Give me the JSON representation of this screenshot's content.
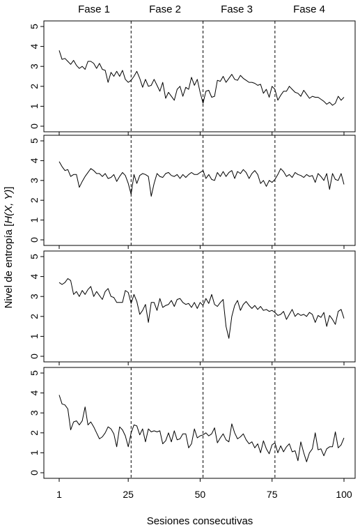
{
  "chart_data": {
    "type": "line",
    "layout": "four vertically stacked panels sharing the x axis",
    "xlabel": "Sesiones consecutivas",
    "ylabel": "Nivel de entropía [H(X, Y)]",
    "ylabel_parts": {
      "before": "Nivel de entropía [",
      "italic": "H(X, Y)",
      "after": "]"
    },
    "phases": [
      "Fase 1",
      "Fase 2",
      "Fase 3",
      "Fase 4"
    ],
    "phase_boundaries": [
      26,
      51,
      76
    ],
    "xlim": [
      1,
      100
    ],
    "ylim": [
      0,
      5
    ],
    "x_ticks": [
      1,
      25,
      50,
      75,
      100
    ],
    "y_ticks": [
      0,
      1,
      2,
      3,
      4,
      5
    ],
    "grid": false,
    "legend": "none",
    "x": [
      1,
      2,
      3,
      4,
      5,
      6,
      7,
      8,
      9,
      10,
      11,
      12,
      13,
      14,
      15,
      16,
      17,
      18,
      19,
      20,
      21,
      22,
      23,
      24,
      25,
      26,
      27,
      28,
      29,
      30,
      31,
      32,
      33,
      34,
      35,
      36,
      37,
      38,
      39,
      40,
      41,
      42,
      43,
      44,
      45,
      46,
      47,
      48,
      49,
      50,
      51,
      52,
      53,
      54,
      55,
      56,
      57,
      58,
      59,
      60,
      61,
      62,
      63,
      64,
      65,
      66,
      67,
      68,
      69,
      70,
      71,
      72,
      73,
      74,
      75,
      76,
      77,
      78,
      79,
      80,
      81,
      82,
      83,
      84,
      85,
      86,
      87,
      88,
      89,
      90,
      91,
      92,
      93,
      94,
      95,
      96,
      97,
      98,
      99,
      100
    ],
    "panels": [
      {
        "values": [
          3.8,
          3.35,
          3.4,
          3.25,
          3.1,
          3.3,
          3.05,
          2.9,
          3.0,
          2.85,
          3.25,
          3.25,
          3.15,
          2.9,
          3.15,
          2.85,
          2.8,
          2.2,
          2.7,
          2.5,
          2.75,
          2.5,
          2.8,
          2.35,
          2.2,
          2.3,
          2.5,
          2.75,
          2.4,
          1.95,
          2.35,
          2.0,
          2.05,
          2.35,
          2.05,
          1.75,
          2.2,
          1.4,
          1.7,
          1.5,
          1.3,
          1.85,
          2.0,
          1.5,
          1.95,
          1.85,
          2.45,
          2.05,
          2.35,
          1.7,
          1.15,
          1.75,
          1.8,
          1.45,
          1.5,
          2.3,
          2.25,
          2.5,
          2.2,
          2.4,
          2.6,
          2.35,
          2.3,
          2.55,
          2.4,
          2.3,
          2.2,
          2.2,
          2.15,
          2.05,
          2.1,
          1.65,
          1.85,
          1.45,
          2.0,
          1.85,
          1.3,
          1.55,
          1.75,
          1.75,
          2.0,
          1.85,
          1.7,
          1.65,
          1.5,
          1.8,
          1.6,
          1.4,
          1.5,
          1.45,
          1.45,
          1.35,
          1.25,
          1.1,
          1.2,
          1.05,
          1.15,
          1.5,
          1.3,
          1.45
        ]
      },
      {
        "values": [
          3.95,
          3.7,
          3.5,
          3.55,
          3.2,
          3.3,
          3.3,
          2.65,
          2.95,
          3.2,
          3.4,
          3.6,
          3.5,
          3.35,
          3.35,
          3.2,
          3.35,
          3.1,
          3.15,
          3.3,
          2.95,
          3.2,
          3.4,
          3.25,
          2.85,
          2.3,
          3.3,
          2.85,
          3.25,
          3.35,
          3.3,
          3.2,
          2.2,
          2.85,
          3.35,
          3.2,
          3.15,
          3.35,
          3.4,
          3.25,
          3.2,
          3.3,
          3.1,
          3.3,
          3.15,
          3.3,
          3.4,
          3.3,
          3.3,
          3.4,
          3.5,
          3.1,
          3.3,
          3.05,
          3.0,
          3.4,
          3.2,
          3.45,
          3.2,
          3.4,
          3.5,
          3.1,
          3.45,
          3.35,
          3.55,
          3.4,
          3.1,
          3.35,
          3.5,
          3.3,
          2.85,
          3.0,
          2.7,
          3.0,
          2.9,
          3.05,
          3.3,
          3.6,
          3.45,
          3.2,
          3.3,
          3.15,
          3.4,
          3.3,
          3.25,
          3.15,
          3.3,
          3.2,
          3.25,
          2.9,
          3.35,
          3.2,
          3.0,
          3.35,
          2.55,
          3.35,
          3.05,
          3.0,
          3.35,
          2.8
        ]
      },
      {
        "values": [
          3.7,
          3.6,
          3.7,
          3.9,
          3.8,
          3.1,
          3.25,
          3.0,
          3.3,
          3.1,
          3.35,
          3.5,
          3.0,
          3.25,
          3.05,
          2.85,
          3.25,
          3.4,
          3.0,
          2.95,
          2.7,
          2.7,
          2.7,
          3.3,
          3.2,
          2.65,
          3.1,
          2.75,
          2.1,
          2.3,
          2.6,
          1.7,
          2.7,
          2.7,
          2.3,
          2.9,
          2.45,
          2.55,
          2.6,
          2.8,
          2.5,
          2.85,
          2.9,
          2.7,
          2.6,
          2.65,
          2.45,
          2.7,
          2.4,
          2.7,
          2.55,
          2.9,
          2.65,
          3.1,
          2.6,
          2.5,
          2.7,
          2.85,
          1.5,
          0.9,
          2.0,
          2.55,
          2.8,
          2.3,
          2.6,
          2.75,
          2.55,
          2.4,
          2.55,
          2.35,
          2.5,
          2.3,
          2.35,
          2.25,
          2.3,
          2.2,
          2.05,
          2.1,
          2.25,
          1.85,
          2.1,
          2.35,
          2.0,
          2.15,
          2.05,
          2.1,
          2.0,
          2.2,
          2.1,
          1.7,
          2.05,
          1.95,
          2.2,
          1.5,
          2.05,
          1.85,
          1.6,
          2.25,
          2.35,
          1.9
        ]
      },
      {
        "values": [
          3.9,
          3.45,
          3.4,
          3.2,
          2.15,
          2.55,
          2.6,
          2.4,
          2.6,
          3.3,
          2.4,
          2.55,
          2.3,
          2.0,
          1.7,
          1.8,
          2.0,
          2.3,
          2.2,
          1.95,
          1.3,
          2.3,
          2.15,
          1.85,
          1.3,
          2.0,
          2.4,
          2.35,
          1.9,
          2.2,
          1.55,
          2.2,
          2.05,
          2.1,
          2.05,
          2.1,
          1.45,
          1.6,
          2.0,
          1.55,
          2.1,
          1.65,
          1.7,
          1.95,
          1.95,
          1.25,
          1.45,
          2.2,
          1.75,
          1.85,
          1.9,
          2.0,
          1.85,
          1.95,
          2.25,
          1.5,
          1.75,
          1.95,
          1.65,
          1.55,
          2.45,
          2.0,
          1.7,
          1.8,
          1.95,
          1.65,
          1.45,
          1.55,
          1.25,
          1.45,
          1.0,
          1.6,
          1.2,
          0.95,
          1.4,
          1.5,
          1.0,
          1.35,
          1.05,
          1.3,
          1.45,
          1.05,
          1.1,
          0.6,
          1.55,
          1.0,
          0.55,
          1.0,
          1.2,
          2.0,
          1.15,
          1.2,
          0.85,
          1.2,
          1.3,
          1.3,
          2.05,
          1.25,
          1.4,
          1.75
        ]
      }
    ]
  }
}
